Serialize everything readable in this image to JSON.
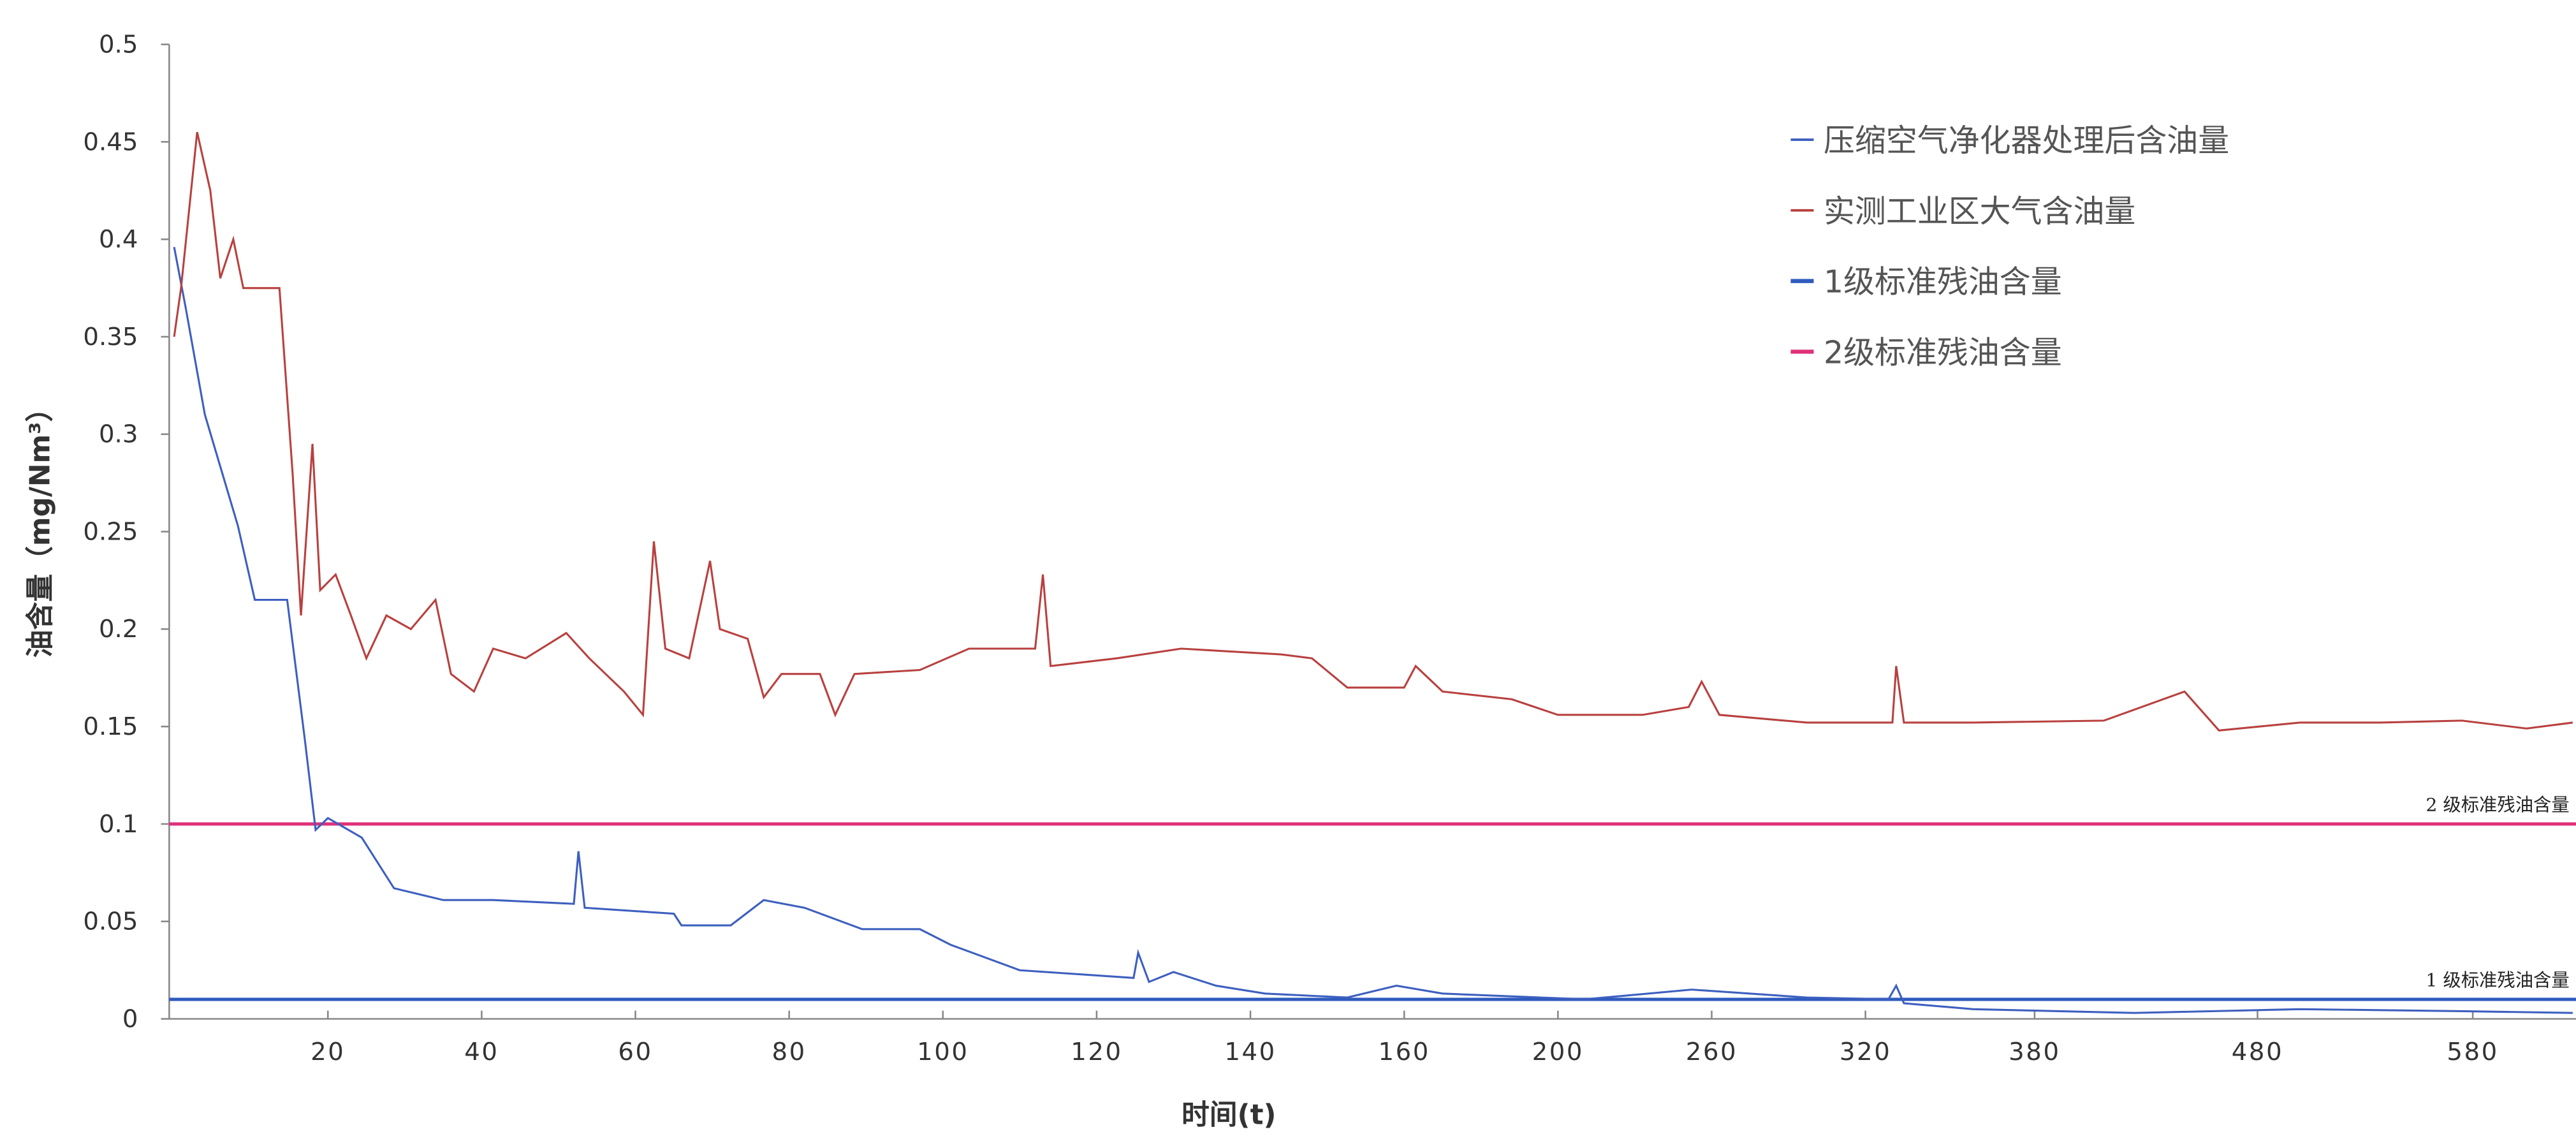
{
  "chart_data": {
    "type": "line",
    "x_label": "时间(t)",
    "y_label": "油含量（mg/Nm³）",
    "xlim": [
      0,
      312
    ],
    "ylim": [
      0,
      0.5
    ],
    "xticks": [
      20,
      40,
      60,
      80,
      100,
      120,
      140,
      160,
      {
        "value": 180,
        "label": "200"
      },
      {
        "value": 200,
        "label": "260"
      },
      {
        "value": 220,
        "label": "320"
      },
      {
        "value": 242,
        "label": "380"
      },
      {
        "value": 271,
        "label": "480"
      },
      {
        "value": 299,
        "label": "580"
      }
    ],
    "yticks": [
      0,
      0.05,
      0.1,
      0.15,
      0.2,
      0.25,
      0.3,
      0.35,
      0.4,
      0.45,
      0.5
    ],
    "series": [
      {
        "name": "压缩空气净化器处理后含油量",
        "color": "#3d5fbf",
        "x": [
          0,
          1.5,
          4,
          8.3,
          10.5,
          14.7,
          17,
          18.4,
          20,
          24.4,
          28.6,
          35,
          41.5,
          52,
          52.6,
          53.4,
          65,
          66,
          72.4,
          76.7,
          82,
          89.5,
          97,
          101,
          110,
          124.8,
          125.4,
          126.8,
          130,
          135.5,
          141.9,
          152.6,
          159,
          165,
          183.5,
          197.4,
          212.4,
          223,
          224,
          225,
          234,
          255,
          276.5,
          297.6,
          312
        ],
        "values": [
          0.396,
          0.365,
          0.31,
          0.253,
          0.215,
          0.215,
          0.143,
          0.097,
          0.103,
          0.093,
          0.067,
          0.061,
          0.061,
          0.059,
          0.086,
          0.057,
          0.054,
          0.048,
          0.048,
          0.061,
          0.057,
          0.046,
          0.046,
          0.038,
          0.025,
          0.021,
          0.034,
          0.019,
          0.024,
          0.017,
          0.013,
          0.011,
          0.017,
          0.013,
          0.01,
          0.015,
          0.011,
          0.01,
          0.017,
          0.008,
          0.005,
          0.003,
          0.005,
          0.004,
          0.003
        ]
      },
      {
        "name": "实测工业区大气含油量",
        "color": "#b8413f",
        "x": [
          0,
          0.9,
          3,
          4.7,
          6,
          7.7,
          9,
          13.7,
          15.4,
          16.5,
          18,
          19,
          21,
          23,
          25,
          27.6,
          30.8,
          34,
          36,
          39,
          41.5,
          45.7,
          51,
          54,
          58.5,
          61,
          62.4,
          63.9,
          67,
          69.7,
          71,
          74.6,
          76.7,
          79,
          84,
          86,
          88.5,
          97,
          103.4,
          112,
          113,
          114,
          122.6,
          131,
          144,
          148,
          152.6,
          160,
          161.5,
          165,
          174,
          180,
          191,
          197,
          198.7,
          201,
          212.4,
          223.5,
          224,
          225,
          234,
          251,
          261.5,
          266,
          276.5,
          287,
          297.6,
          306,
          312
        ],
        "values": [
          0.35,
          0.375,
          0.455,
          0.425,
          0.38,
          0.4,
          0.375,
          0.375,
          0.28,
          0.207,
          0.295,
          0.22,
          0.228,
          0.207,
          0.185,
          0.207,
          0.2,
          0.215,
          0.177,
          0.168,
          0.19,
          0.185,
          0.198,
          0.185,
          0.168,
          0.156,
          0.245,
          0.19,
          0.185,
          0.235,
          0.2,
          0.195,
          0.165,
          0.177,
          0.177,
          0.156,
          0.177,
          0.179,
          0.19,
          0.19,
          0.228,
          0.181,
          0.185,
          0.19,
          0.187,
          0.185,
          0.17,
          0.17,
          0.181,
          0.168,
          0.164,
          0.156,
          0.156,
          0.16,
          0.173,
          0.156,
          0.152,
          0.152,
          0.181,
          0.152,
          0.152,
          0.153,
          0.168,
          0.148,
          0.152,
          0.152,
          0.153,
          0.149,
          0.152
        ]
      }
    ],
    "hlines": [
      {
        "name": "1级标准残油含量",
        "label": "1 级标准残油含量",
        "color": "#2f5bbd",
        "value": 0.01
      },
      {
        "name": "2级标准残油含量",
        "label": "2 级标准残油含量",
        "color": "#e0307a",
        "value": 0.1
      }
    ]
  }
}
